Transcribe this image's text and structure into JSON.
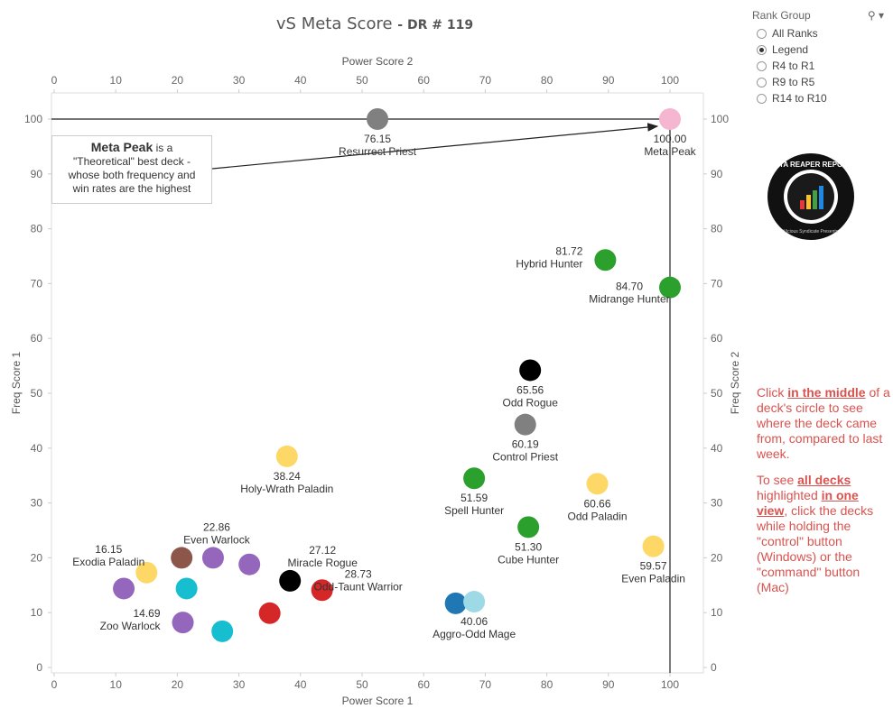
{
  "title": {
    "main": "vS Meta Score",
    "sub": "- DR # 119"
  },
  "chart_data": {
    "type": "scatter",
    "xlabel_top": "Power Score 2",
    "xlabel_bottom": "Power Score 1",
    "ylabel_left": "Freq Score 1",
    "ylabel_right": "Freq Score 2",
    "xlim": [
      0,
      105
    ],
    "ylim": [
      -1,
      105
    ],
    "x_ticks": [
      0,
      10,
      20,
      30,
      40,
      50,
      60,
      70,
      80,
      90,
      100
    ],
    "y_ticks": [
      0,
      10,
      20,
      30,
      40,
      50,
      60,
      70,
      80,
      90,
      100
    ],
    "reference_lines": {
      "x": 100,
      "y": 100
    },
    "points": [
      {
        "x": 52.5,
        "y": 100,
        "color": "#808080",
        "score": "76.15",
        "label": "Resurrect Priest",
        "label_pos": "below"
      },
      {
        "x": 100,
        "y": 100,
        "color": "#f4b6d0",
        "score": "100.00",
        "label": "Meta Peak",
        "label_pos": "below"
      },
      {
        "x": 89.5,
        "y": 74.3,
        "color": "#2ca02c",
        "score": "81.72",
        "label": "Hybrid Hunter",
        "label_pos": "left"
      },
      {
        "x": 100,
        "y": 69.3,
        "color": "#2ca02c",
        "score": "84.70",
        "label": "Midrange Hunter",
        "label_pos": "below-left"
      },
      {
        "x": 77.3,
        "y": 54.2,
        "color": "#000000",
        "score": "65.56",
        "label": "Odd Rogue",
        "label_pos": "below"
      },
      {
        "x": 76.5,
        "y": 44.3,
        "color": "#808080",
        "score": "60.19",
        "label": "Control Priest",
        "label_pos": "below"
      },
      {
        "x": 68.2,
        "y": 34.5,
        "color": "#2ca02c",
        "score": "51.59",
        "label": "Spell Hunter",
        "label_pos": "below"
      },
      {
        "x": 88.2,
        "y": 33.5,
        "color": "#fdd866",
        "score": "60.66",
        "label": "Odd Paladin",
        "label_pos": "below"
      },
      {
        "x": 77,
        "y": 25.6,
        "color": "#2ca02c",
        "score": "51.30",
        "label": "Cube Hunter",
        "label_pos": "below"
      },
      {
        "x": 97.3,
        "y": 22.1,
        "color": "#fdd866",
        "score": "59.57",
        "label": "Even Paladin",
        "label_pos": "below"
      },
      {
        "x": 37.8,
        "y": 38.5,
        "color": "#fdd866",
        "score": "38.24",
        "label": "Holy-Wrath Paladin",
        "label_pos": "below"
      },
      {
        "x": 25.8,
        "y": 20,
        "color": "#9467bd",
        "score": "22.86",
        "label": "Even Warlock",
        "label_pos": "above"
      },
      {
        "x": 31.7,
        "y": 18.8,
        "color": "#9467bd",
        "score": "",
        "label": "",
        "label_pos": "none"
      },
      {
        "x": 38.3,
        "y": 15.8,
        "color": "#000000",
        "score": "27.12",
        "label": "Miracle Rogue",
        "label_pos": "above-right"
      },
      {
        "x": 43.5,
        "y": 14.1,
        "color": "#d62728",
        "score": "28.73",
        "label": "Odd-Taunt Warrior",
        "label_pos": "right"
      },
      {
        "x": 35,
        "y": 9.9,
        "color": "#d62728",
        "score": "",
        "label": "",
        "label_pos": "none"
      },
      {
        "x": 65.2,
        "y": 11.7,
        "color": "#1f77b4",
        "score": "",
        "label": "",
        "label_pos": "none"
      },
      {
        "x": 68.2,
        "y": 12,
        "color": "#9edae5",
        "score": "40.06",
        "label": "Aggro-Odd Mage",
        "label_pos": "below"
      },
      {
        "x": 15,
        "y": 17.3,
        "color": "#fdd866",
        "score": "16.15",
        "label": "Exodia Paladin",
        "label_pos": "above-left"
      },
      {
        "x": 20.7,
        "y": 20,
        "color": "#8c564b",
        "score": "",
        "label": "",
        "label_pos": "none"
      },
      {
        "x": 11.3,
        "y": 14.4,
        "color": "#9467bd",
        "score": "",
        "label": "",
        "label_pos": "none"
      },
      {
        "x": 21.5,
        "y": 14.4,
        "color": "#17becf",
        "score": "",
        "label": "",
        "label_pos": "none"
      },
      {
        "x": 20.9,
        "y": 8.2,
        "color": "#9467bd",
        "score": "14.69",
        "label": "Zoo Warlock",
        "label_pos": "left"
      },
      {
        "x": 27.3,
        "y": 6.6,
        "color": "#17becf",
        "score": "",
        "label": "",
        "label_pos": "none"
      }
    ]
  },
  "callout": {
    "bold": "Meta Peak",
    "line1_rest": " is a",
    "line2": "\"Theoretical\" best deck -",
    "line3": "whose both frequency and",
    "line4": "win rates are the highest"
  },
  "rank_group": {
    "title": "Rank Group",
    "search_icon": "search-icon",
    "dropdown_icon": "chevron-down-icon",
    "options": [
      {
        "label": "All Ranks",
        "selected": false
      },
      {
        "label": "Legend",
        "selected": true
      },
      {
        "label": "R4 to R1",
        "selected": false
      },
      {
        "label": "R9 to R5",
        "selected": false
      },
      {
        "label": "R14 to R10",
        "selected": false
      }
    ]
  },
  "logo": {
    "text": "DATA REAPER REPORT",
    "subtext": "Vicious Syndicate Presents"
  },
  "info": {
    "p1_a": "Click ",
    "p1_b": "in the middle",
    "p1_c": " of a deck's circle to see where the deck came from, compared to last week.",
    "p2_a": "To see ",
    "p2_b": "all decks ",
    "p2_c": " highlighted ",
    "p2_d": "in one view",
    "p2_e": ", click the decks while holding the \"control\" button (Windows) or the \"command\" button (Mac)"
  }
}
